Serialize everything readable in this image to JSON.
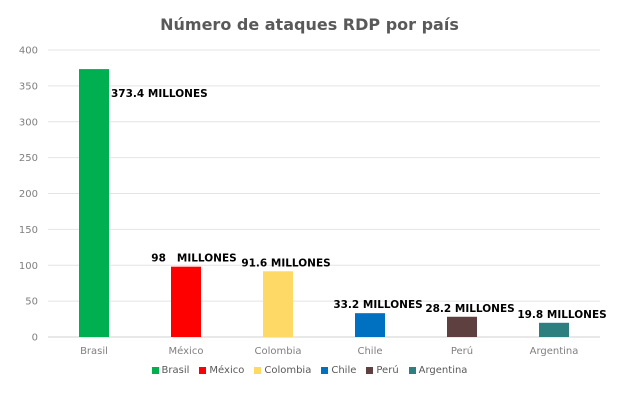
{
  "chart_data": {
    "type": "bar",
    "title": "Número de ataques RDP por país",
    "xlabel": "",
    "ylabel": "",
    "ylim": [
      0,
      400
    ],
    "yticks": [
      "0",
      "50",
      "100",
      "150",
      "200",
      "250",
      "300",
      "350",
      "400"
    ],
    "grid": true,
    "legend_position": "bottom",
    "categories": [
      "Brasil",
      "México",
      "Colombia",
      "Chile",
      "Perú",
      "Argentina"
    ],
    "values": [
      373.4,
      98,
      91.6,
      33.2,
      28.2,
      19.8
    ],
    "data_labels": [
      "373.4 MILLONES",
      "98   MILLONES",
      "91.6 MILLONES",
      "33.2 MILLONES",
      "28.2 MILLONES",
      "19.8 MILLONES"
    ],
    "colors": [
      "#00b050",
      "#ff0000",
      "#ffd966",
      "#0070c0",
      "#5e4040",
      "#2e8080"
    ]
  }
}
